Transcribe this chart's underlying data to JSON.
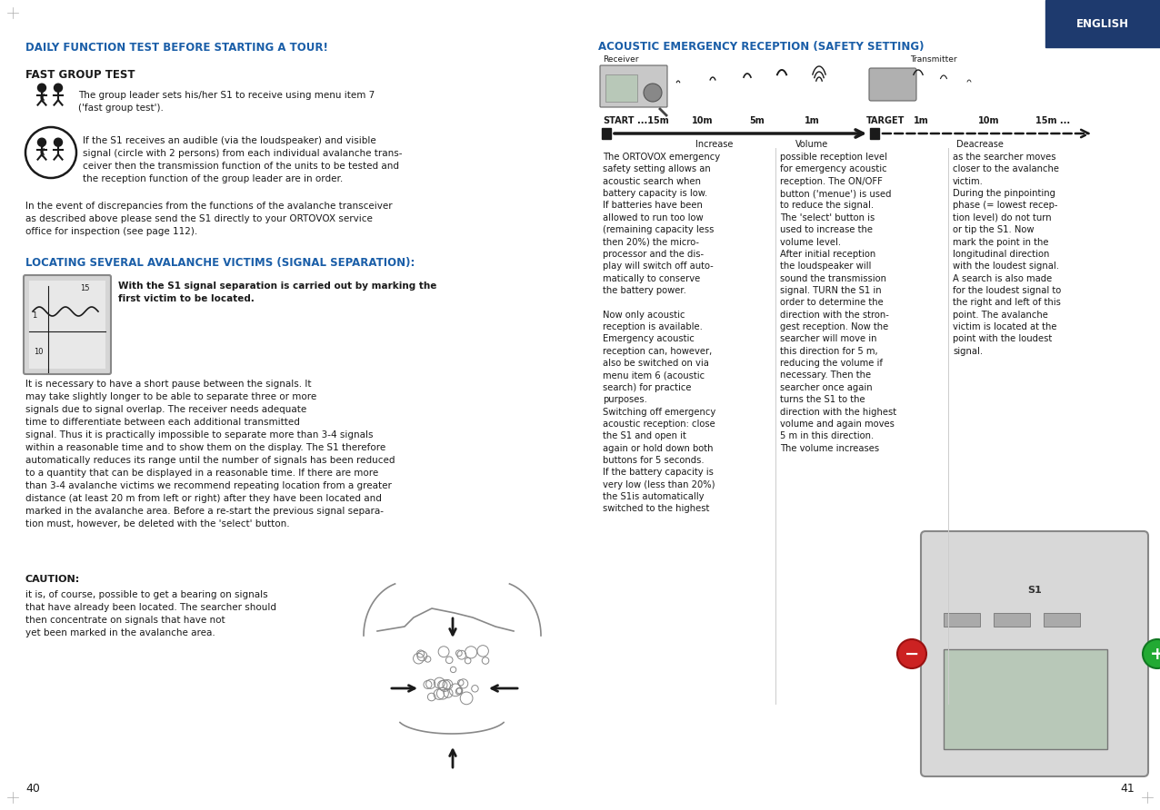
{
  "bg_color": "#ffffff",
  "page_width": 12.76,
  "page_height": 8.92,
  "english_tab_color": "#1e3a6e",
  "english_tab_text": "ENGLISH",
  "blue_color": "#1a5ea8",
  "black_color": "#1a1a1a",
  "gray_color": "#888888",
  "left_heading": "DAILY FUNCTION TEST BEFORE STARTING A TOUR!",
  "right_heading": "ACOUSTIC EMERGENCY RECEPTION (SAFETY SETTING)",
  "subheading1": "FAST GROUP TEST",
  "subheading2": "LOCATING SEVERAL AVALANCHE VICTIMS (SIGNAL SEPARATION):",
  "caution_heading": "CAUTION:",
  "page_num_left": "40",
  "page_num_right": "41",
  "left_col1_text": "The group leader sets his/her S1 to receive using menu item 7\n('fast group test').",
  "left_col2_text": "If the S1 receives an audible (via the loudspeaker) and visible\nsignal (circle with 2 persons) from each individual avalanche trans-\nceiver then the transmission function of the units to be tested and\nthe reception function of the group leader are in order.",
  "left_col3_text": "In the event of discrepancies from the functions of the avalanche transceiver\nas described above please send the S1 directly to your ORTOVOX service\noffice for inspection (see page 112).",
  "signal_sep_bold": "With the S1 signal separation is carried out by marking the\nfirst victim to be located.",
  "signal_sep_body": "It is necessary to have a short pause between the signals. It\nmay take slightly longer to be able to separate three or more\nsignals due to signal overlap. The receiver needs adequate\ntime to differentiate between each additional transmitted\nsignal. Thus it is practically impossible to separate more than 3-4 signals\nwithin a reasonable time and to show them on the display. The S1 therefore\nautomatically reduces its range until the number of signals has been reduced\nto a quantity that can be displayed in a reasonable time. If there are more\nthan 3-4 avalanche victims we recommend repeating location from a greater\ndistance (at least 20 m from left or right) after they have been located and\nmarked in the avalanche area. Before a re-start the previous signal separa-\ntion must, however, be deleted with the 'select' button.",
  "caution_body": "it is, of course, possible to get a bearing on signals\nthat have already been located. The searcher should\nthen concentrate on signals that have not\nyet been marked in the avalanche area.",
  "right_col1": "The ORTOVOX emergency\nsafety setting allows an\nacoustic search when\nbattery capacity is low.\nIf batteries have been\nallowed to run too low\n(remaining capacity less\nthen 20%) the micro-\nprocessor and the dis-\nplay will switch off auto-\nmatically to conserve\nthe battery power.\n\nNow only acoustic\nreception is available.\nEmergency acoustic\nreception can, however,\nalso be switched on via\nmenu item 6 (acoustic\nsearch) for practice\npurposes.\nSwitching off emergency\nacoustic reception: close\nthe S1 and open it\nagain or hold down both\nbuttons for 5 seconds.\nIf the battery capacity is\nvery low (less than 20%)\nthe S1is automatically\nswitched to the highest",
  "right_col2": "possible reception level\nfor emergency acoustic\nreception. The ON/OFF\nbutton ('menue') is used\nto reduce the signal.\nThe 'select' button is\nused to increase the\nvolume level.\nAfter initial reception\nthe loudspeaker will\nsound the transmission\nsignal. TURN the S1 in\norder to determine the\ndirection with the stron-\ngest reception. Now the\nsearcher will move in\nthis direction for 5 m,\nreducing the volume if\nnecessary. Then the\nsearcher once again\nturns the S1 to the\ndirection with the highest\nvolume and again moves\n5 m in this direction.\nThe volume increases",
  "right_col3": "as the searcher moves\ncloser to the avalanche\nvictim.\nDuring the pinpointing\nphase (= lowest recep-\ntion level) do not turn\nor tip the S1. Now\nmark the point in the\nlongitudinal direction\nwith the loudest signal.\nA search is also made\nfor the loudest signal to\nthe right and left of this\npoint. The avalanche\nvictim is located at the\npoint with the loudest\nsignal.",
  "receiver_label": "Receiver",
  "transmitter_label": "Transmitter",
  "scale_start": "START",
  "scale_target": "TARGET",
  "scale_left_labels": [
    "...15m",
    "10m",
    "5m",
    "1m"
  ],
  "scale_right_labels": [
    "1m",
    "10m",
    "15m ..."
  ],
  "scale_increase": "Increase",
  "scale_volume": "Volume",
  "scale_deacrease": "Deacrease"
}
